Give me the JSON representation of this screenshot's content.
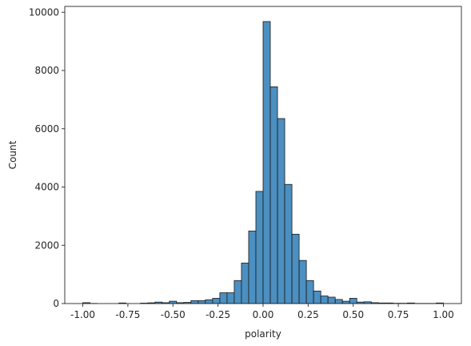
{
  "chart_data": {
    "type": "bar",
    "xlabel": "polarity",
    "ylabel": "Count",
    "xlim": [
      -1.1,
      1.1
    ],
    "ylim": [
      0,
      10200
    ],
    "xticks": [
      -1.0,
      -0.75,
      -0.5,
      -0.25,
      0.0,
      0.25,
      0.5,
      0.75,
      1.0
    ],
    "xtick_labels": [
      "-1.00",
      "-0.75",
      "-0.50",
      "-0.25",
      "0.00",
      "0.25",
      "0.50",
      "0.75",
      "1.00"
    ],
    "yticks": [
      0,
      2000,
      4000,
      6000,
      8000,
      10000
    ],
    "ytick_labels": [
      "0",
      "2000",
      "4000",
      "6000",
      "8000",
      "10000"
    ],
    "bin_edges": [
      -1.0,
      -0.96,
      -0.92,
      -0.88,
      -0.84,
      -0.8,
      -0.76,
      -0.72,
      -0.68,
      -0.64,
      -0.6,
      -0.56,
      -0.52,
      -0.48,
      -0.44,
      -0.4,
      -0.36,
      -0.32,
      -0.28,
      -0.24,
      -0.2,
      -0.16,
      -0.12,
      -0.08,
      -0.04,
      0.0,
      0.04,
      0.08,
      0.12,
      0.16,
      0.2,
      0.24,
      0.28,
      0.32,
      0.36,
      0.4,
      0.44,
      0.48,
      0.52,
      0.56,
      0.6,
      0.64,
      0.68,
      0.72,
      0.76,
      0.8,
      0.84,
      0.88,
      0.92,
      0.96,
      1.0
    ],
    "counts": [
      30,
      5,
      0,
      0,
      0,
      20,
      0,
      0,
      15,
      25,
      50,
      30,
      80,
      30,
      40,
      100,
      100,
      130,
      180,
      370,
      370,
      790,
      1390,
      2490,
      3850,
      9680,
      7440,
      6350,
      4090,
      2380,
      1480,
      790,
      430,
      260,
      220,
      140,
      80,
      180,
      50,
      60,
      30,
      20,
      20,
      10,
      10,
      20,
      5,
      5,
      5,
      20
    ],
    "bar_color": "#4c8fc1",
    "edge_color": "#1a1a1a",
    "grid": false,
    "legend": "none"
  }
}
